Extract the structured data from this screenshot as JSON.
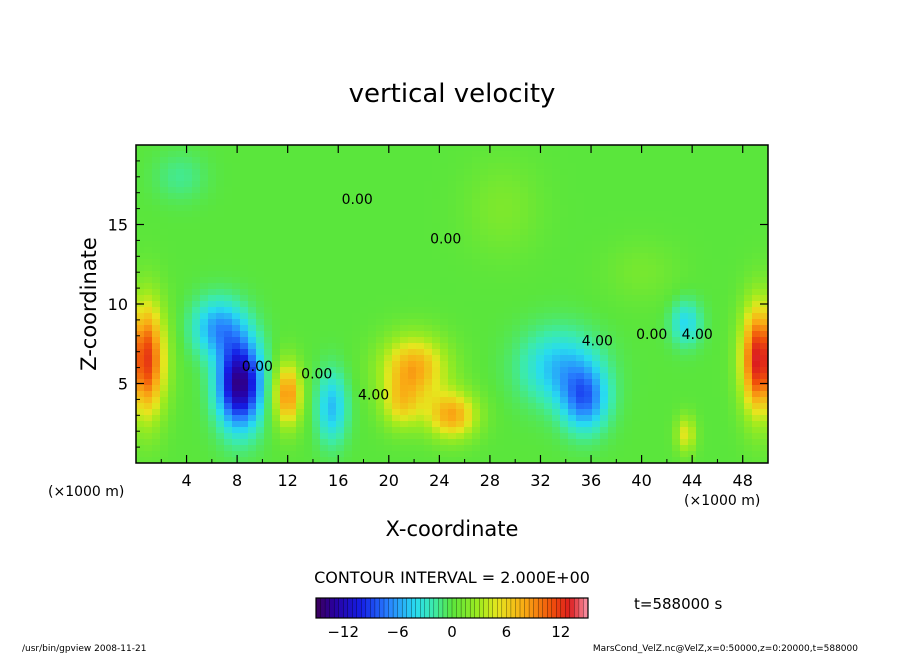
{
  "chart_data": {
    "type": "heatmap",
    "title": "vertical velocity",
    "xlabel": "X-coordinate",
    "ylabel": "Z-coordinate",
    "x_unit_left": "(×1000 m)",
    "x_unit_right": "(×1000 m)",
    "xlim": [
      0,
      50
    ],
    "ylim": [
      0,
      20
    ],
    "x_ticks": [
      {
        "value": 4,
        "label": "4"
      },
      {
        "value": 8,
        "label": "8"
      },
      {
        "value": 12,
        "label": "12"
      },
      {
        "value": 16,
        "label": "16"
      },
      {
        "value": 20,
        "label": "20"
      },
      {
        "value": 24,
        "label": "24"
      },
      {
        "value": 28,
        "label": "28"
      },
      {
        "value": 32,
        "label": "32"
      },
      {
        "value": 36,
        "label": "36"
      },
      {
        "value": 40,
        "label": "40"
      },
      {
        "value": 44,
        "label": "44"
      },
      {
        "value": 48,
        "label": "48"
      }
    ],
    "y_ticks": [
      {
        "value": 5,
        "label": "5"
      },
      {
        "value": 10,
        "label": "10"
      },
      {
        "value": 15,
        "label": "15"
      }
    ],
    "contour_interval": "CONTOUR INTERVAL = 2.000E+00",
    "time_label": "t=588000 s",
    "colorbar": {
      "min": -15,
      "max": 15,
      "tick_labels": [
        {
          "value": -12,
          "label": "−12"
        },
        {
          "value": -6,
          "label": "−6"
        },
        {
          "value": 0,
          "label": "0"
        },
        {
          "value": 6,
          "label": "6"
        },
        {
          "value": 12,
          "label": "12"
        }
      ]
    },
    "contour_labels": [
      {
        "text": "0.00",
        "x": 17.5,
        "z": 16.3
      },
      {
        "text": "0.00",
        "x": 24.5,
        "z": 13.8
      },
      {
        "text": "0.00",
        "x": 14.3,
        "z": 5.3
      },
      {
        "text": "4.00",
        "x": 18.8,
        "z": 4.0
      },
      {
        "text": "4.00",
        "x": 36.5,
        "z": 7.4
      },
      {
        "text": "0.00",
        "x": 40.8,
        "z": 7.8
      },
      {
        "text": "4.00",
        "x": 44.4,
        "z": 7.8
      },
      {
        "text": "0.00",
        "x": 9.6,
        "z": 5.8
      }
    ],
    "features": [
      {
        "x": 0.8,
        "z": 6.5,
        "w": 12,
        "sx": 1.5,
        "sz": 3.6
      },
      {
        "x": 49.3,
        "z": 6.5,
        "w": 13.5,
        "sx": 1.4,
        "sz": 3.4
      },
      {
        "x": 8.2,
        "z": 5.0,
        "w": -14,
        "sx": 1.7,
        "sz": 2.7
      },
      {
        "x": 6.5,
        "z": 8.5,
        "w": -6,
        "sx": 2.0,
        "sz": 1.8
      },
      {
        "x": 12.0,
        "z": 4.3,
        "w": 9,
        "sx": 1.1,
        "sz": 2.0
      },
      {
        "x": 15.5,
        "z": 3.5,
        "w": -5,
        "sx": 1.2,
        "sz": 2.2
      },
      {
        "x": 22.0,
        "z": 6.0,
        "w": 8,
        "sx": 2.6,
        "sz": 2.0
      },
      {
        "x": 25.0,
        "z": 3.0,
        "w": 8,
        "sx": 2.0,
        "sz": 1.5
      },
      {
        "x": 21.0,
        "z": 3.6,
        "w": 5,
        "sx": 1.6,
        "sz": 1.6
      },
      {
        "x": 33.5,
        "z": 6.0,
        "w": -5,
        "sx": 3.0,
        "sz": 2.3
      },
      {
        "x": 35.5,
        "z": 4.0,
        "w": -7,
        "sx": 1.8,
        "sz": 2.0
      },
      {
        "x": 43.5,
        "z": 8.8,
        "w": -4,
        "sx": 1.2,
        "sz": 1.4
      },
      {
        "x": 43.5,
        "z": 1.8,
        "w": 5,
        "sx": 0.8,
        "sz": 1.2
      },
      {
        "x": 3.5,
        "z": 18.0,
        "w": -1.5,
        "sx": 2.0,
        "sz": 1.5
      },
      {
        "x": 29.0,
        "z": 16.0,
        "w": 1.5,
        "sx": 3.0,
        "sz": 3.0
      },
      {
        "x": 40.0,
        "z": 12.0,
        "w": 1.2,
        "sx": 3.0,
        "sz": 2.0
      }
    ]
  },
  "footer": {
    "left": "/usr/bin/gpview  2008-11-21",
    "right": "MarsCond_VelZ.nc@VelZ,x=0:50000,z=0:20000,t=588000"
  }
}
